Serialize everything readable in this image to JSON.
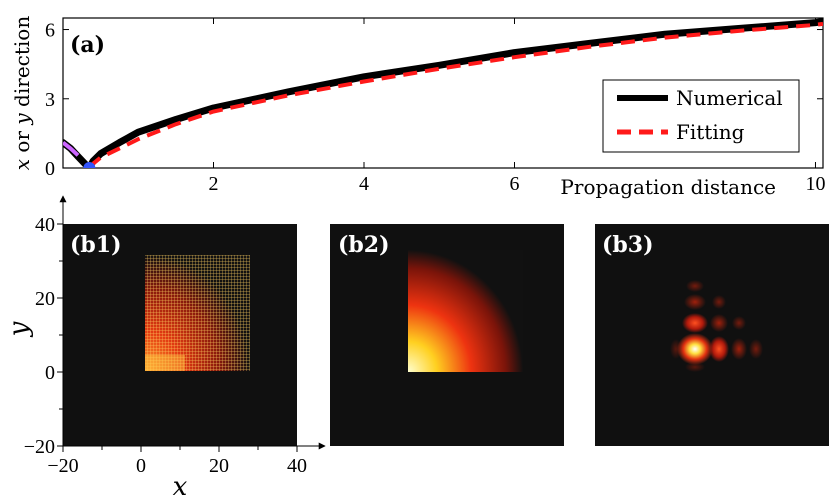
{
  "chart_data": [
    {
      "id": "a",
      "type": "line",
      "panel_label": "(a)",
      "xlabel": "Propagation distance",
      "ylabel": "x or y direction",
      "ylabel_parts": [
        "x",
        " or ",
        "y",
        " direction"
      ],
      "xlim": [
        0,
        10.1
      ],
      "ylim": [
        0,
        6.5
      ],
      "xticks": [
        2,
        4,
        6,
        10
      ],
      "xtick_labels": [
        "2",
        "4",
        "6",
        "10"
      ],
      "yticks": [
        0,
        3,
        6
      ],
      "ytick_labels": [
        "0",
        "3",
        "6"
      ],
      "legend_position": "right",
      "series": [
        {
          "name": "Numerical",
          "color": "#000000",
          "style": "solid",
          "x": [
            0.0,
            0.1,
            0.2,
            0.3,
            0.35,
            0.4,
            0.5,
            0.75,
            1.0,
            1.5,
            2.0,
            3.0,
            4.0,
            5.0,
            6.0,
            7.0,
            8.0,
            9.0,
            10.0,
            10.1
          ],
          "y": [
            1.1,
            0.85,
            0.5,
            0.15,
            0.0,
            0.3,
            0.62,
            1.1,
            1.55,
            2.1,
            2.6,
            3.3,
            3.95,
            4.45,
            5.0,
            5.4,
            5.8,
            6.05,
            6.3,
            6.35
          ]
        },
        {
          "name": "Fitting",
          "color": "#ff1a1a",
          "style": "dashed",
          "x": [
            0.35,
            0.5,
            0.75,
            1.0,
            1.5,
            2.0,
            3.0,
            4.0,
            5.0,
            6.0,
            7.0,
            8.0,
            9.0,
            10.0,
            10.1
          ],
          "y": [
            0.05,
            0.45,
            0.85,
            1.25,
            1.9,
            2.45,
            3.15,
            3.75,
            4.3,
            4.8,
            5.25,
            5.65,
            5.95,
            6.2,
            6.25
          ]
        },
        {
          "name": "initial segment",
          "color": "#cc66ff",
          "style": "solid",
          "x": [
            0.0,
            0.1,
            0.2
          ],
          "y": [
            1.1,
            0.85,
            0.55
          ]
        }
      ],
      "marker": {
        "x": 0.35,
        "y": 0.0,
        "color": "#3355ff"
      }
    },
    {
      "id": "b1",
      "type": "heatmap",
      "panel_label": "(b1)",
      "xlabel": "x",
      "ylabel": "y",
      "xlim": [
        -20,
        40
      ],
      "ylim": [
        -20,
        40
      ],
      "xticks": [
        -20,
        0,
        20,
        40
      ],
      "xtick_labels": [
        "−20",
        "0",
        "20",
        "40"
      ],
      "yticks": [
        -20,
        0,
        20,
        40
      ],
      "ytick_labels": [
        "−20",
        "0",
        "20",
        "40"
      ],
      "description_values": {
        "quadrant_corner": [
          0,
          0
        ],
        "radius_extent": 22
      }
    },
    {
      "id": "b2",
      "type": "heatmap",
      "panel_label": "(b2)",
      "xlim": [
        -20,
        40
      ],
      "ylim": [
        -20,
        40
      ],
      "description_values": {
        "quadrant_corner": [
          0,
          0
        ],
        "radius_extent": 25
      }
    },
    {
      "id": "b3",
      "type": "heatmap",
      "panel_label": "(b3)",
      "xlim": [
        -20,
        40
      ],
      "ylim": [
        -20,
        40
      ],
      "description_values": {
        "peak": [
          0,
          0
        ]
      }
    }
  ],
  "colors": {
    "heatmap_bg": "#101010",
    "panel_label_dark": "#000000",
    "panel_label_light": "#ffffff"
  }
}
